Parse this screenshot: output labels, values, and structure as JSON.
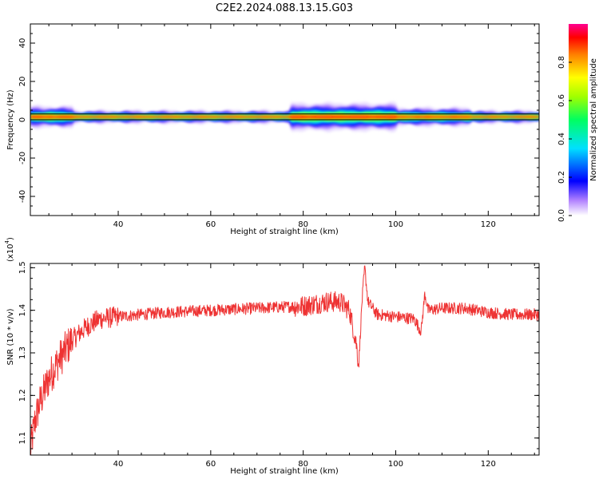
{
  "title": "C2E2.2024.088.13.15.G03",
  "chart_data": [
    {
      "type": "heatmap",
      "title": "C2E2.2024.088.13.15.G03",
      "xlabel": "Height of straight line (km)",
      "ylabel": "Frequency (Hz)",
      "xlim": [
        21,
        131
      ],
      "ylim": [
        -50,
        50
      ],
      "xticks": [
        40,
        60,
        80,
        100,
        120
      ],
      "yticks": [
        -40,
        -20,
        0,
        20,
        40
      ],
      "xtick_labels": [
        "40",
        "60",
        "80",
        "100",
        "120"
      ],
      "ytick_labels": [
        "-40",
        "-20",
        "0",
        "20",
        "40"
      ],
      "colorbar": {
        "label": "Normalized spectral amplitude",
        "range": [
          0,
          1
        ],
        "ticks": [
          0,
          0.2,
          0.4,
          0.6,
          0.8
        ],
        "tick_labels": [
          "0.0",
          "0.2",
          "0.4",
          "0.6",
          "0.8"
        ]
      },
      "band": {
        "center_freq_hz": 1.5,
        "segments": [
          {
            "x": [
              21,
              30
            ],
            "halfwidth_hz": 3.5
          },
          {
            "x": [
              30,
              77
            ],
            "halfwidth_hz": 2.0
          },
          {
            "x": [
              77,
              100
            ],
            "halfwidth_hz": 4.5
          },
          {
            "x": [
              100,
              116
            ],
            "halfwidth_hz": 3.0
          },
          {
            "x": [
              116,
              131
            ],
            "halfwidth_hz": 2.0
          }
        ],
        "peak_amplitude": 0.9
      },
      "reference_lines_hz": [
        0,
        3
      ]
    },
    {
      "type": "line",
      "xlabel": "Height of straight line (km)",
      "ylabel": "SNR (10 * v/v)",
      "y_multiplier_label": "(x10",
      "y_multiplier_exp": "4",
      "y_multiplier_close": ")",
      "xlim": [
        21,
        131
      ],
      "ylim": [
        1.06,
        1.51
      ],
      "xticks": [
        40,
        60,
        80,
        100,
        120
      ],
      "yticks": [
        1.1,
        1.2,
        1.3,
        1.4,
        1.5
      ],
      "xtick_labels": [
        "40",
        "60",
        "80",
        "100",
        "120"
      ],
      "ytick_labels": [
        "1.1",
        "1.2",
        "1.3",
        "1.4",
        "1.5"
      ],
      "series": [
        {
          "color": "#ee3333",
          "trend_points": [
            [
              21,
              1.07
            ],
            [
              22,
              1.14
            ],
            [
              23,
              1.18
            ],
            [
              25,
              1.24
            ],
            [
              27,
              1.28
            ],
            [
              30,
              1.33
            ],
            [
              33,
              1.36
            ],
            [
              36,
              1.38
            ],
            [
              40,
              1.385
            ],
            [
              45,
              1.39
            ],
            [
              50,
              1.395
            ],
            [
              60,
              1.4
            ],
            [
              70,
              1.405
            ],
            [
              80,
              1.41
            ],
            [
              85,
              1.42
            ],
            [
              88,
              1.42
            ],
            [
              90,
              1.4
            ],
            [
              91.5,
              1.32
            ],
            [
              92,
              1.27
            ],
            [
              92.7,
              1.42
            ],
            [
              93.3,
              1.5
            ],
            [
              94,
              1.42
            ],
            [
              96,
              1.39
            ],
            [
              100,
              1.385
            ],
            [
              104,
              1.38
            ],
            [
              105.5,
              1.35
            ],
            [
              106.3,
              1.44
            ],
            [
              107,
              1.4
            ],
            [
              110,
              1.405
            ],
            [
              115,
              1.405
            ],
            [
              120,
              1.395
            ],
            [
              125,
              1.39
            ],
            [
              131,
              1.39
            ]
          ]
        }
      ]
    }
  ]
}
